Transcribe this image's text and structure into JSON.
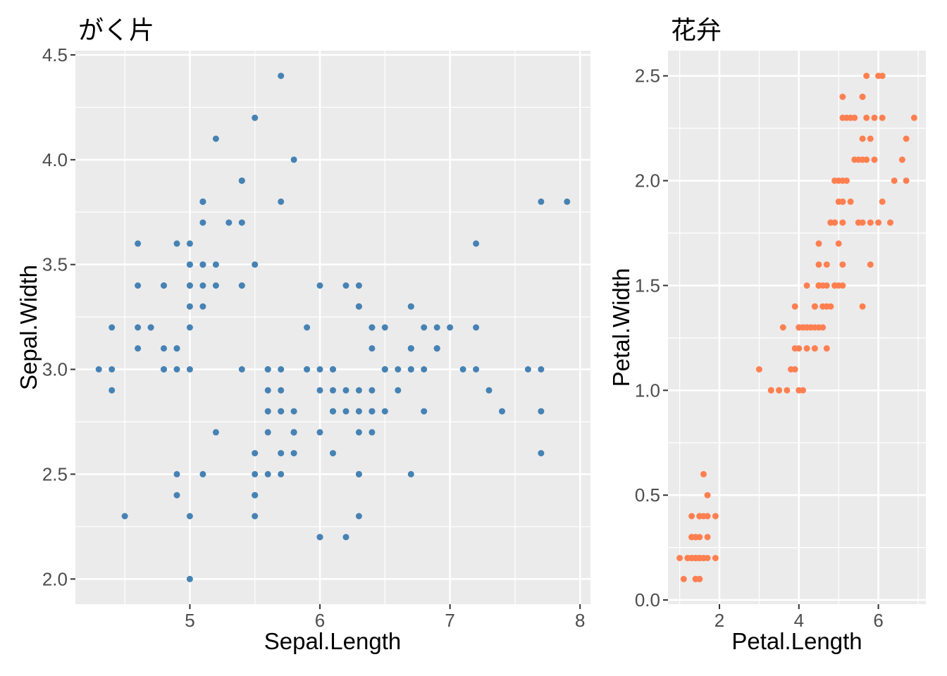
{
  "figure": {
    "background": "#FFFFFF",
    "panel_background": "#EBEBEB",
    "grid_color": "#FFFFFF",
    "tick_mark_color": "#333333",
    "tick_label_color": "#4D4D4D",
    "title_color": "#000000"
  },
  "chart_data": [
    {
      "type": "scatter",
      "title": "がく片",
      "xlabel": "Sepal.Length",
      "ylabel": "Sepal.Width",
      "xlim": [
        4.12,
        8.08
      ],
      "ylim": [
        1.88,
        4.52
      ],
      "xticks": [
        5,
        6,
        7,
        8
      ],
      "xtick_labels": [
        "5",
        "6",
        "7",
        "8"
      ],
      "yticks": [
        2.0,
        2.5,
        3.0,
        3.5,
        4.0,
        4.5
      ],
      "ytick_labels": [
        "2.0",
        "2.5",
        "3.0",
        "3.5",
        "4.0",
        "4.5"
      ],
      "x_minor": [
        4.5,
        5.5,
        6.5,
        7.5
      ],
      "y_minor": [
        2.25,
        2.75,
        3.25,
        3.75,
        4.25
      ],
      "grid": true,
      "legend": "none",
      "point_color": "#4682B4",
      "x": [
        5.1,
        4.9,
        4.7,
        4.6,
        5.0,
        5.4,
        4.6,
        5.0,
        4.4,
        4.9,
        5.4,
        4.8,
        4.8,
        4.3,
        5.8,
        5.7,
        5.4,
        5.1,
        5.7,
        5.1,
        5.4,
        5.1,
        4.6,
        5.1,
        4.8,
        5.0,
        5.0,
        5.2,
        5.2,
        4.7,
        4.8,
        5.4,
        5.2,
        5.5,
        4.9,
        5.0,
        5.5,
        4.9,
        4.4,
        5.1,
        5.0,
        4.5,
        4.4,
        5.0,
        5.1,
        4.8,
        5.1,
        4.6,
        5.3,
        5.0,
        7.0,
        6.4,
        6.9,
        5.5,
        6.5,
        5.7,
        6.3,
        4.9,
        6.6,
        5.2,
        5.0,
        5.9,
        6.0,
        6.1,
        5.6,
        6.7,
        5.6,
        5.8,
        6.2,
        5.6,
        5.9,
        6.1,
        6.3,
        6.1,
        6.4,
        6.6,
        6.8,
        6.7,
        6.0,
        5.7,
        5.5,
        5.5,
        5.8,
        6.0,
        5.4,
        6.0,
        6.7,
        6.3,
        5.6,
        5.5,
        5.5,
        6.1,
        5.8,
        5.0,
        5.6,
        5.7,
        5.7,
        6.2,
        5.1,
        5.7,
        6.3,
        5.8,
        7.1,
        6.3,
        6.5,
        7.6,
        4.9,
        7.3,
        6.7,
        7.2,
        6.5,
        6.4,
        6.8,
        5.7,
        5.8,
        6.4,
        6.5,
        7.7,
        7.7,
        6.0,
        6.9,
        5.6,
        7.7,
        6.3,
        6.7,
        7.2,
        6.2,
        6.1,
        6.4,
        7.2,
        7.4,
        7.9,
        6.4,
        6.3,
        6.1,
        7.7,
        6.3,
        6.4,
        6.0,
        6.9,
        6.7,
        6.9,
        5.8,
        6.8,
        6.7,
        6.7,
        6.3,
        6.5,
        6.2,
        5.9
      ],
      "y": [
        3.5,
        3.0,
        3.2,
        3.1,
        3.6,
        3.9,
        3.4,
        3.4,
        2.9,
        3.1,
        3.7,
        3.4,
        3.0,
        3.0,
        4.0,
        4.4,
        3.9,
        3.5,
        3.8,
        3.8,
        3.4,
        3.7,
        3.6,
        3.3,
        3.4,
        3.0,
        3.4,
        3.5,
        3.4,
        3.2,
        3.1,
        3.4,
        4.1,
        4.2,
        3.1,
        3.2,
        3.5,
        3.6,
        3.0,
        3.4,
        3.5,
        2.3,
        3.2,
        3.5,
        3.8,
        3.0,
        3.8,
        3.2,
        3.7,
        3.3,
        3.2,
        3.2,
        3.1,
        2.3,
        2.8,
        2.8,
        3.3,
        2.4,
        2.9,
        2.7,
        2.0,
        3.0,
        2.2,
        2.9,
        2.9,
        3.1,
        3.0,
        2.7,
        2.2,
        2.5,
        3.2,
        2.8,
        2.5,
        2.8,
        2.9,
        3.0,
        2.8,
        3.0,
        2.9,
        2.6,
        2.4,
        2.4,
        2.7,
        2.7,
        3.0,
        3.4,
        3.1,
        2.3,
        3.0,
        2.5,
        2.6,
        3.0,
        2.6,
        2.3,
        2.7,
        3.0,
        2.9,
        2.9,
        2.5,
        2.8,
        3.3,
        2.7,
        3.0,
        2.9,
        3.0,
        3.0,
        2.5,
        2.9,
        2.5,
        3.6,
        3.2,
        2.7,
        3.0,
        2.5,
        2.8,
        3.2,
        3.0,
        3.8,
        2.6,
        2.2,
        3.2,
        2.8,
        2.8,
        2.7,
        3.3,
        3.2,
        2.8,
        3.0,
        2.8,
        3.0,
        2.8,
        3.8,
        2.8,
        2.8,
        2.6,
        3.0,
        3.4,
        3.1,
        3.0,
        3.1,
        3.1,
        3.1,
        2.7,
        3.2,
        3.3,
        3.0,
        2.5,
        3.0,
        3.4,
        3.0
      ]
    },
    {
      "type": "scatter",
      "title": "花弁",
      "xlabel": "Petal.Length",
      "ylabel": "Petal.Width",
      "xlim": [
        0.705,
        7.195
      ],
      "ylim": [
        -0.02,
        2.62
      ],
      "xticks": [
        2,
        4,
        6
      ],
      "xtick_labels": [
        "2",
        "4",
        "6"
      ],
      "yticks": [
        0.0,
        0.5,
        1.0,
        1.5,
        2.0,
        2.5
      ],
      "ytick_labels": [
        "0.0",
        "0.5",
        "1.0",
        "1.5",
        "2.0",
        "2.5"
      ],
      "x_minor": [
        1,
        3,
        5,
        7
      ],
      "y_minor": [
        0.25,
        0.75,
        1.25,
        1.75,
        2.25
      ],
      "grid": true,
      "legend": "none",
      "point_color": "#FF7F50",
      "x": [
        1.4,
        1.4,
        1.3,
        1.5,
        1.4,
        1.7,
        1.4,
        1.5,
        1.4,
        1.5,
        1.5,
        1.6,
        1.4,
        1.1,
        1.2,
        1.5,
        1.3,
        1.4,
        1.7,
        1.5,
        1.7,
        1.5,
        1.0,
        1.7,
        1.9,
        1.6,
        1.6,
        1.5,
        1.4,
        1.6,
        1.6,
        1.5,
        1.5,
        1.4,
        1.5,
        1.2,
        1.3,
        1.4,
        1.3,
        1.5,
        1.3,
        1.3,
        1.3,
        1.6,
        1.9,
        1.4,
        1.6,
        1.4,
        1.5,
        1.4,
        4.7,
        4.5,
        4.9,
        4.0,
        4.6,
        4.5,
        4.7,
        3.3,
        4.6,
        3.9,
        3.5,
        4.2,
        4.0,
        4.7,
        3.6,
        4.4,
        4.5,
        4.1,
        4.5,
        3.9,
        4.8,
        4.0,
        4.9,
        4.7,
        4.3,
        4.4,
        4.8,
        5.0,
        4.5,
        3.5,
        3.8,
        3.7,
        3.9,
        5.1,
        4.5,
        4.5,
        4.7,
        4.4,
        4.1,
        4.0,
        4.4,
        4.6,
        4.0,
        3.3,
        4.2,
        4.2,
        4.2,
        4.3,
        3.0,
        4.1,
        6.0,
        5.1,
        5.9,
        5.6,
        5.8,
        6.6,
        4.5,
        6.3,
        5.8,
        6.1,
        5.1,
        5.3,
        5.5,
        5.0,
        5.1,
        5.3,
        5.5,
        6.7,
        6.9,
        5.0,
        5.7,
        4.9,
        6.7,
        4.9,
        5.7,
        6.0,
        4.8,
        4.9,
        5.6,
        5.8,
        6.1,
        6.4,
        5.6,
        5.1,
        5.6,
        6.1,
        5.6,
        5.5,
        4.8,
        5.4,
        5.6,
        5.1,
        5.1,
        5.9,
        5.7,
        5.2,
        5.0,
        5.2,
        5.4,
        5.1
      ],
      "y": [
        0.2,
        0.2,
        0.2,
        0.2,
        0.2,
        0.4,
        0.3,
        0.2,
        0.2,
        0.1,
        0.2,
        0.2,
        0.1,
        0.1,
        0.2,
        0.4,
        0.4,
        0.3,
        0.3,
        0.3,
        0.2,
        0.4,
        0.2,
        0.5,
        0.2,
        0.2,
        0.4,
        0.2,
        0.2,
        0.2,
        0.2,
        0.4,
        0.1,
        0.2,
        0.2,
        0.2,
        0.2,
        0.1,
        0.2,
        0.2,
        0.3,
        0.3,
        0.2,
        0.6,
        0.4,
        0.3,
        0.2,
        0.2,
        0.2,
        0.2,
        1.4,
        1.5,
        1.5,
        1.3,
        1.5,
        1.3,
        1.6,
        1.0,
        1.3,
        1.4,
        1.0,
        1.5,
        1.0,
        1.4,
        1.3,
        1.4,
        1.5,
        1.0,
        1.5,
        1.1,
        1.8,
        1.3,
        1.5,
        1.2,
        1.3,
        1.4,
        1.4,
        1.7,
        1.5,
        1.0,
        1.1,
        1.0,
        1.2,
        1.6,
        1.5,
        1.6,
        1.5,
        1.3,
        1.3,
        1.3,
        1.2,
        1.4,
        1.2,
        1.0,
        1.3,
        1.2,
        1.3,
        1.3,
        1.1,
        1.3,
        2.5,
        1.9,
        2.1,
        1.8,
        2.2,
        2.1,
        1.7,
        1.8,
        1.8,
        2.5,
        2.0,
        1.9,
        2.1,
        2.0,
        2.4,
        2.3,
        1.8,
        2.2,
        2.3,
        1.5,
        2.3,
        2.0,
        2.0,
        1.8,
        2.1,
        1.8,
        1.8,
        1.8,
        2.1,
        1.6,
        1.9,
        2.0,
        2.2,
        1.5,
        1.4,
        2.3,
        2.4,
        1.8,
        1.8,
        2.1,
        2.4,
        2.3,
        1.9,
        2.3,
        2.5,
        2.3,
        1.9,
        2.0,
        2.3,
        1.8
      ]
    }
  ]
}
